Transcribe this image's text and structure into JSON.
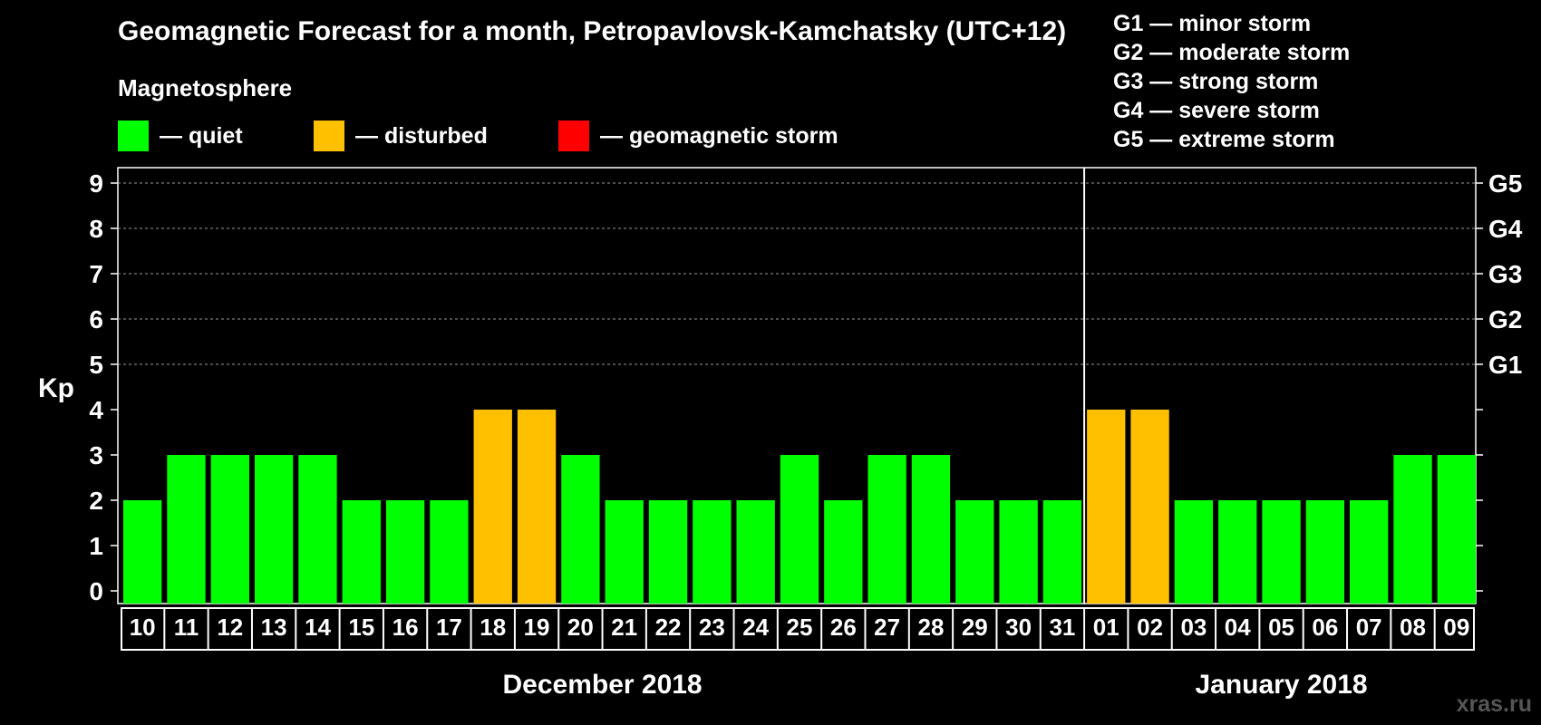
{
  "header": {
    "title": "Geomagnetic Forecast for a month, Petropavlovsk-Kamchatsky (UTC+12)",
    "magnetosphere": "Magnetosphere"
  },
  "legend": {
    "quiet": {
      "label": "— quiet",
      "color": "#00ff00"
    },
    "disturbed": {
      "label": "— disturbed",
      "color": "#ffc000"
    },
    "storm": {
      "label": "— geomagnetic storm",
      "color": "#ff0000"
    }
  },
  "storm_scale": [
    "G1 — minor storm",
    "G2 — moderate storm",
    "G3 — strong storm",
    "G4 — severe storm",
    "G5 — extreme storm"
  ],
  "watermark": "xras.ru",
  "chart_data": {
    "type": "bar",
    "ylabel": "Kp",
    "ylim": [
      0,
      9
    ],
    "yticks": [
      "0",
      "1",
      "2",
      "3",
      "4",
      "5",
      "6",
      "7",
      "8",
      "9"
    ],
    "right_ticks": [
      {
        "kp": 5,
        "label": "G1"
      },
      {
        "kp": 6,
        "label": "G2"
      },
      {
        "kp": 7,
        "label": "G3"
      },
      {
        "kp": 8,
        "label": "G4"
      },
      {
        "kp": 9,
        "label": "G5"
      }
    ],
    "grid": true,
    "categories": [
      "10",
      "11",
      "12",
      "13",
      "14",
      "15",
      "16",
      "17",
      "18",
      "19",
      "20",
      "21",
      "22",
      "23",
      "24",
      "25",
      "26",
      "27",
      "28",
      "29",
      "30",
      "31",
      "01",
      "02",
      "03",
      "04",
      "05",
      "06",
      "07",
      "08",
      "09"
    ],
    "values": [
      2,
      3,
      3,
      3,
      3,
      2,
      2,
      2,
      4,
      4,
      3,
      2,
      2,
      2,
      2,
      3,
      2,
      3,
      3,
      2,
      2,
      2,
      4,
      4,
      2,
      2,
      2,
      2,
      2,
      3,
      3
    ],
    "status": [
      "quiet",
      "quiet",
      "quiet",
      "quiet",
      "quiet",
      "quiet",
      "quiet",
      "quiet",
      "disturbed",
      "disturbed",
      "quiet",
      "quiet",
      "quiet",
      "quiet",
      "quiet",
      "quiet",
      "quiet",
      "quiet",
      "quiet",
      "quiet",
      "quiet",
      "quiet",
      "disturbed",
      "disturbed",
      "quiet",
      "quiet",
      "quiet",
      "quiet",
      "quiet",
      "quiet",
      "quiet"
    ],
    "month_groups": [
      {
        "label": "December 2018",
        "count": 22
      },
      {
        "label": "January 2018",
        "count": 9
      }
    ]
  }
}
